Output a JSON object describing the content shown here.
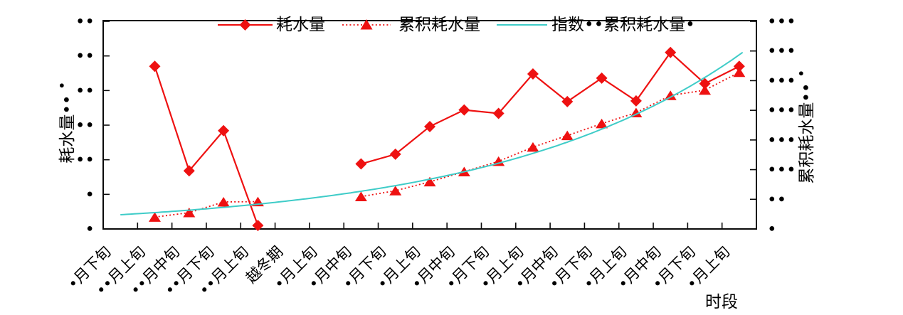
{
  "figure": {
    "x_axis_title": "时段",
    "y_left_title": "耗水量••",
    "y_left_title_sup": "•",
    "y_right_title": "累积耗水量••",
    "y_right_title_sup": "•",
    "y_left_tick_labels": [
      "••",
      "••",
      "••",
      "••",
      "••",
      "•",
      "•"
    ],
    "y_right_tick_labels": [
      "•••",
      "•••",
      "•••",
      "•••",
      "•••",
      "•••",
      "••",
      "•"
    ]
  },
  "legend": [
    {
      "label": "耗水量",
      "marker": "diamond",
      "line": "solid"
    },
    {
      "label": "累积耗水量",
      "marker": "triangle",
      "line": "dotted"
    },
    {
      "label": "指数••累积耗水量•",
      "marker": "none",
      "line": "solid"
    }
  ],
  "colors": {
    "series_red": "#ee1111",
    "fit_cyan": "#3fccc8",
    "axis": "#0a0a0a",
    "background": "#ffffff"
  },
  "chart_data": {
    "type": "line",
    "title": "",
    "xlabel": "时段",
    "ylabel_left": "耗水量•• •",
    "ylabel_right": "累积耗水量•• •",
    "legend_position": "top",
    "grid": false,
    "categories": [
      "•月下旬",
      "••月上旬",
      "••月中旬",
      "••月下旬",
      "••月上旬",
      "越冬期",
      "•月上旬",
      "•月中旬",
      "•月下旬",
      "•月上旬",
      "•月中旬",
      "•月下旬",
      "•月上旬",
      "•月中旬",
      "•月下旬",
      "•月上旬",
      "•月中旬",
      "•月下旬",
      "•月上旬"
    ],
    "axes": {
      "left": {
        "min": 0,
        "max": 30,
        "ticks": 7
      },
      "right": {
        "min": 0,
        "max": 350,
        "ticks": 8
      }
    },
    "series": [
      {
        "name": "耗水量",
        "axis": "left",
        "marker": "diamond",
        "style": "solid",
        "values": [
          null,
          23.5,
          8.4,
          14.2,
          0.5,
          null,
          null,
          9.4,
          10.8,
          14.8,
          17.2,
          16.7,
          22.4,
          18.4,
          21.8,
          18.5,
          25.5,
          21,
          23.5
        ]
      },
      {
        "name": "累积耗水量",
        "axis": "right",
        "marker": "triangle",
        "style": "dotted",
        "values": [
          null,
          20,
          27.5,
          45.5,
          46,
          null,
          null,
          54.5,
          64.5,
          79.5,
          96.5,
          114,
          138,
          157.5,
          177.5,
          196,
          225,
          234,
          264
        ]
      },
      {
        "name": "指数••累积耗水量•",
        "axis": "right",
        "marker": "none",
        "style": "fit",
        "fit": {
          "type": "exponential",
          "a": 24,
          "b": 0.1391,
          "t_start": 0,
          "t_end": 18.1
        }
      }
    ]
  }
}
